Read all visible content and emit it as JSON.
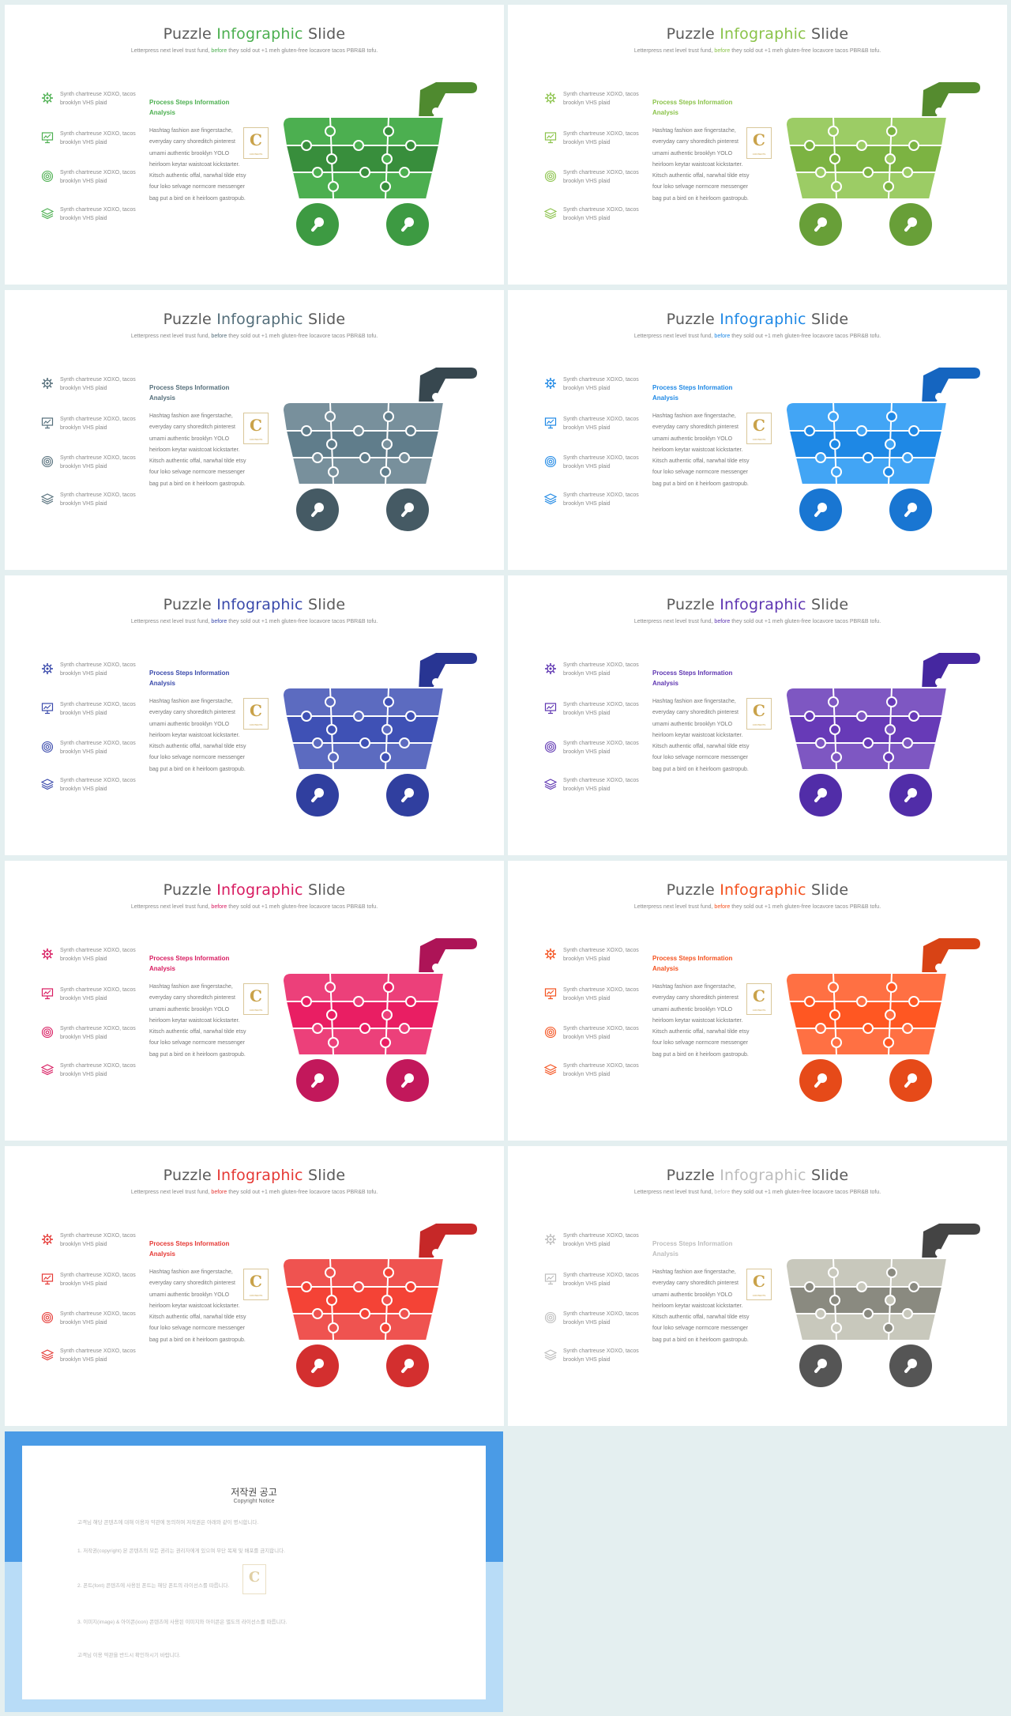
{
  "common": {
    "title_a": "Puzzle ",
    "title_b": "Infographic",
    "title_c": " Slide",
    "subtitle_a": "Letterpress next level trust fund, ",
    "subtitle_b": "before",
    "subtitle_c": " they sold out +1 meh gluten-free locavore tacos PBR&B tofu.",
    "items": [
      {
        "icon": "gear-icon",
        "text": "Synth chartreuse XOXO, tacos brooklyn VHS plaid"
      },
      {
        "icon": "presentation-icon",
        "text": "Synth chartreuse XOXO, tacos brooklyn VHS plaid"
      },
      {
        "icon": "target-icon",
        "text": "Synth chartreuse XOXO, tacos brooklyn VHS plaid"
      },
      {
        "icon": "layers-icon",
        "text": "Synth chartreuse XOXO, tacos brooklyn VHS plaid"
      }
    ],
    "process_title": "Process Steps Information Analysis",
    "process_body": "Hashtag fashion axe fingerstache, everyday carry shoreditch pinterest umami authentic brooklyn YOLO heirloom keytar waistcoat kickstarter. Kitsch authentic offal, narwhal tilde etsy four loko selvage normcore messenger bag put a bird on it heirloom gastropub.",
    "logo_letter": "C",
    "logo_caption": "CONTENTS"
  },
  "slides": [
    {
      "accent": "#4caf50",
      "light": "#4caf50",
      "dark": "#388e3c",
      "handle": "#4f8a2f",
      "wheel": "#3d9a42"
    },
    {
      "accent": "#8bc34a",
      "light": "#9ccc65",
      "dark": "#7cb342",
      "handle": "#558b2f",
      "wheel": "#689f38"
    },
    {
      "accent": "#546e7a",
      "light": "#78909c",
      "dark": "#607d8b",
      "handle": "#37474f",
      "wheel": "#455a64"
    },
    {
      "accent": "#1e88e5",
      "light": "#42a5f5",
      "dark": "#1e88e5",
      "handle": "#1565c0",
      "wheel": "#1976d2"
    },
    {
      "accent": "#3949ab",
      "light": "#5c6bc0",
      "dark": "#3f51b5",
      "handle": "#283593",
      "wheel": "#303f9f"
    },
    {
      "accent": "#5e35b1",
      "light": "#7e57c2",
      "dark": "#673ab7",
      "handle": "#4527a0",
      "wheel": "#512da8"
    },
    {
      "accent": "#d81b60",
      "light": "#ec407a",
      "dark": "#e91e63",
      "handle": "#ad1457",
      "wheel": "#c2185b"
    },
    {
      "accent": "#f4511e",
      "light": "#ff7043",
      "dark": "#ff5722",
      "handle": "#d84315",
      "wheel": "#e64a19"
    },
    {
      "accent": "#e53935",
      "light": "#ef5350",
      "dark": "#f44336",
      "handle": "#c62828",
      "wheel": "#d32f2f"
    },
    {
      "accent": "#bdbdbd",
      "light": "#c8c8bc",
      "dark": "#8a8a80",
      "handle": "#444444",
      "wheel": "#555555"
    }
  ],
  "notice": {
    "title": "저작권 공고",
    "subtitle": "Copyright Notice",
    "p1": "고객님 해당 콘텐츠에 대해 이용자 약관에 동의하며 저작권은 아래와 같이 명시합니다.",
    "p2": "1. 저작권(copyright) 본 콘텐츠의 모든 권리는 권리자에게 있으며 무단 복제 및 배포를 금지합니다.",
    "p3": "2. 폰트(font) 콘텐츠에 사용된 폰트는 해당 폰트의 라이선스를 따릅니다.",
    "p4": "3. 이미지(image) & 아이콘(icon) 콘텐츠에 사용된 이미지와 아이콘은 별도의 라이선스를 따릅니다.",
    "p5": "고객님 이용 약관을 반드시 확인하시기 바랍니다."
  }
}
